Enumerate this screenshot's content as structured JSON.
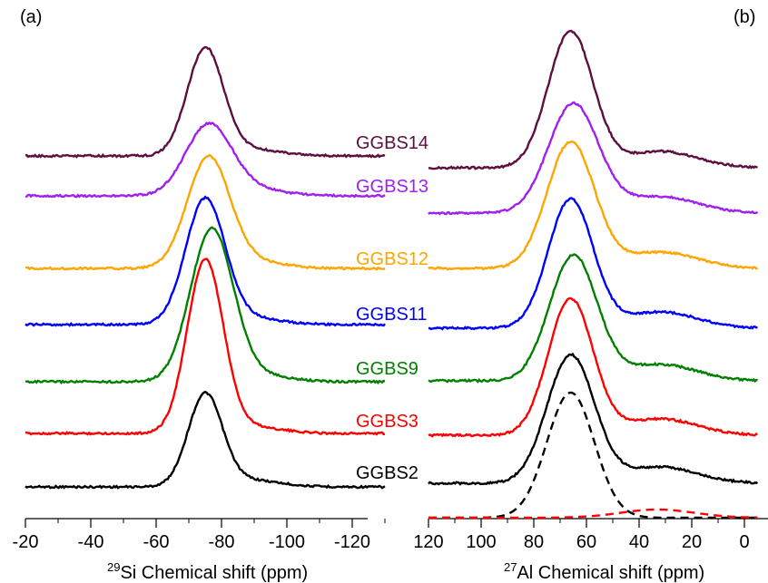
{
  "chart_data": [
    {
      "type": "line",
      "panel_label": "(a)",
      "xlabel_sup": "29",
      "xlabel_text": "Si Chemical shift (ppm)",
      "x_reversed": true,
      "xlim": [
        -20,
        -130
      ],
      "xticks": [
        -20,
        -40,
        -60,
        -80,
        -100,
        -120
      ],
      "tick_labels": [
        "-20",
        "-40",
        "-60",
        "-80",
        "-100",
        "-120"
      ],
      "series": [
        {
          "name": "GGBS2",
          "color": "#000000",
          "peak_center": -75,
          "peak_width": 5.2
        },
        {
          "name": "GGBS3",
          "color": "#ff0000",
          "peak_center": -75,
          "peak_width": 5.5
        },
        {
          "name": "GGBS9",
          "color": "#008000",
          "peak_center": -77,
          "peak_width": 6.5
        },
        {
          "name": "GGBS11",
          "color": "#0000ff",
          "peak_center": -75,
          "peak_width": 6.0
        },
        {
          "name": "GGBS12",
          "color": "#ffa500",
          "peak_center": -76,
          "peak_width": 6.5
        },
        {
          "name": "GGBS13",
          "color": "#a020f0",
          "peak_center": -76,
          "peak_width": 7.0
        },
        {
          "name": "GGBS14",
          "color": "#5c0f40",
          "peak_center": -75,
          "peak_width": 5.5
        }
      ]
    },
    {
      "type": "line",
      "panel_label": "(b)",
      "xlabel_sup": "27",
      "xlabel_text": "Al Chemical shift (ppm)",
      "x_reversed": true,
      "xlim": [
        120,
        -5
      ],
      "xticks": [
        120,
        100,
        80,
        60,
        40,
        20,
        0
      ],
      "tick_labels": [
        "120",
        "100",
        "80",
        "60",
        "40",
        "20",
        "0"
      ],
      "series": [
        {
          "name": "GGBS2",
          "color": "#000000",
          "peak_center": 66,
          "peak_width": 9
        },
        {
          "name": "GGBS3",
          "color": "#ff0000",
          "peak_center": 66,
          "peak_width": 8.5
        },
        {
          "name": "GGBS9",
          "color": "#008000",
          "peak_center": 65,
          "peak_width": 9
        },
        {
          "name": "GGBS11",
          "color": "#0000ff",
          "peak_center": 66,
          "peak_width": 8.5
        },
        {
          "name": "GGBS12",
          "color": "#ffa500",
          "peak_center": 66,
          "peak_width": 9
        },
        {
          "name": "GGBS13",
          "color": "#a020f0",
          "peak_center": 65,
          "peak_width": 9.5
        },
        {
          "name": "GGBS14",
          "color": "#5c0f40",
          "peak_center": 66,
          "peak_width": 8.5
        }
      ],
      "fit_components": [
        {
          "color": "#000000",
          "dash": true,
          "peak_center": 66,
          "peak_width": 9
        },
        {
          "color": "#ff0000",
          "dash": true,
          "peak_center": 33,
          "peak_width": 14
        }
      ]
    }
  ]
}
